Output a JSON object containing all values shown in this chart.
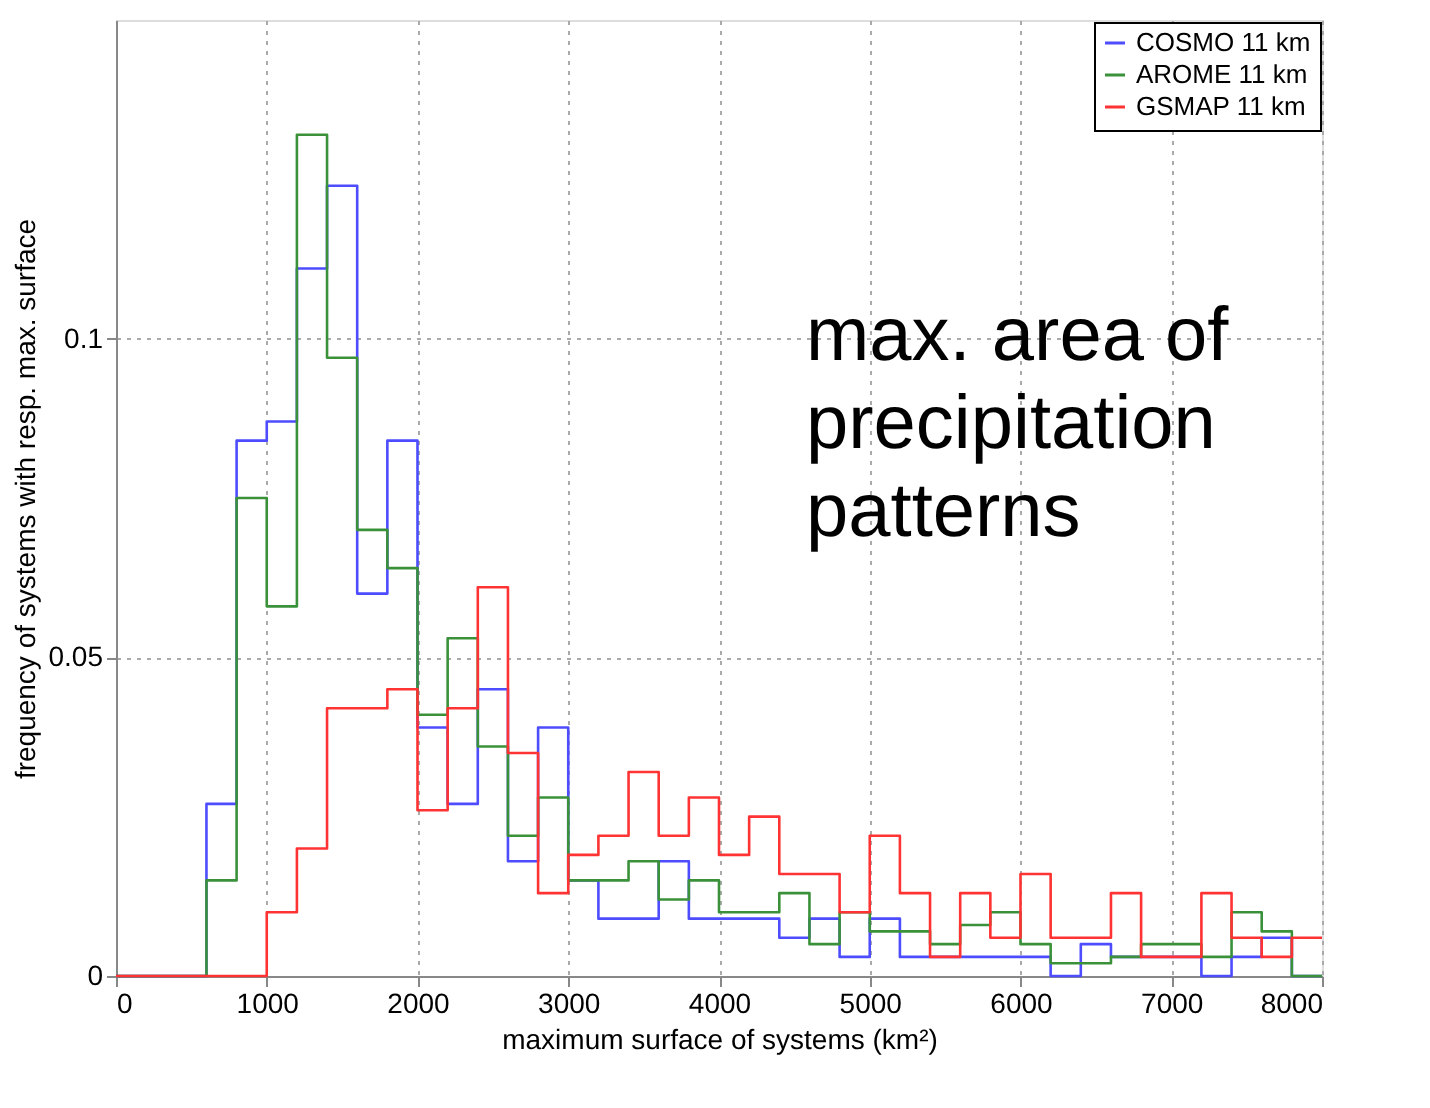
{
  "chart_data": {
    "type": "histogram",
    "xlabel": "maximum surface of systems (km²)",
    "ylabel": "frequency of systems with resp. max. surface",
    "bins": [
      0,
      200,
      400,
      600,
      800,
      1000,
      1200,
      1400,
      1600,
      1800,
      2000,
      2200,
      2400,
      2600,
      2800,
      3000,
      3200,
      3400,
      3600,
      3800,
      4000,
      4200,
      4400,
      4600,
      4800,
      5000,
      5200,
      5400,
      5600,
      5800,
      6000,
      6200,
      6400,
      6600,
      6800,
      7000,
      7200,
      7400,
      7600,
      7800,
      8000
    ],
    "series": [
      {
        "name": "COSMO 11 km",
        "color": "#4d4dff",
        "values": [
          0,
          0,
          0,
          0.027,
          0.084,
          0.087,
          0.111,
          0.124,
          0.06,
          0.084,
          0.039,
          0.027,
          0.045,
          0.018,
          0.039,
          0.015,
          0.009,
          0.009,
          0.018,
          0.009,
          0.009,
          0.009,
          0.006,
          0.009,
          0.003,
          0.009,
          0.003,
          0.003,
          0.003,
          0.003,
          0.003,
          0,
          0.005,
          0.003,
          0.003,
          0.003,
          0,
          0.003,
          0.006,
          0
        ]
      },
      {
        "name": "AROME 11 km",
        "color": "#3a913a",
        "values": [
          0,
          0,
          0,
          0.015,
          0.075,
          0.058,
          0.132,
          0.097,
          0.07,
          0.064,
          0.041,
          0.053,
          0.036,
          0.022,
          0.028,
          0.015,
          0.015,
          0.018,
          0.012,
          0.015,
          0.01,
          0.01,
          0.013,
          0.005,
          0.01,
          0.007,
          0.007,
          0.005,
          0.008,
          0.01,
          0.005,
          0.002,
          0.002,
          0.003,
          0.005,
          0.005,
          0.003,
          0.01,
          0.007,
          0
        ]
      },
      {
        "name": "GSMAP 11 km",
        "color": "#ff3333",
        "values": [
          0,
          0,
          0,
          0,
          0,
          0.01,
          0.02,
          0.042,
          0.042,
          0.045,
          0.026,
          0.042,
          0.061,
          0.035,
          0.013,
          0.019,
          0.022,
          0.032,
          0.022,
          0.028,
          0.019,
          0.025,
          0.016,
          0.016,
          0.01,
          0.022,
          0.013,
          0.003,
          0.013,
          0.006,
          0.016,
          0.006,
          0.006,
          0.013,
          0.003,
          0.003,
          0.013,
          0.006,
          0.003,
          0.006
        ]
      }
    ],
    "xlim": [
      0,
      8000
    ],
    "xticks": [
      0,
      1000,
      2000,
      3000,
      4000,
      5000,
      6000,
      7000,
      8000
    ],
    "ylim": [
      0,
      0.15
    ],
    "yticks": [
      0,
      0.05,
      0.1
    ],
    "grid": true,
    "legend": "top right",
    "line_style": "solid",
    "annotations": [
      "max. area of\nprecipitation\npatterns"
    ]
  }
}
